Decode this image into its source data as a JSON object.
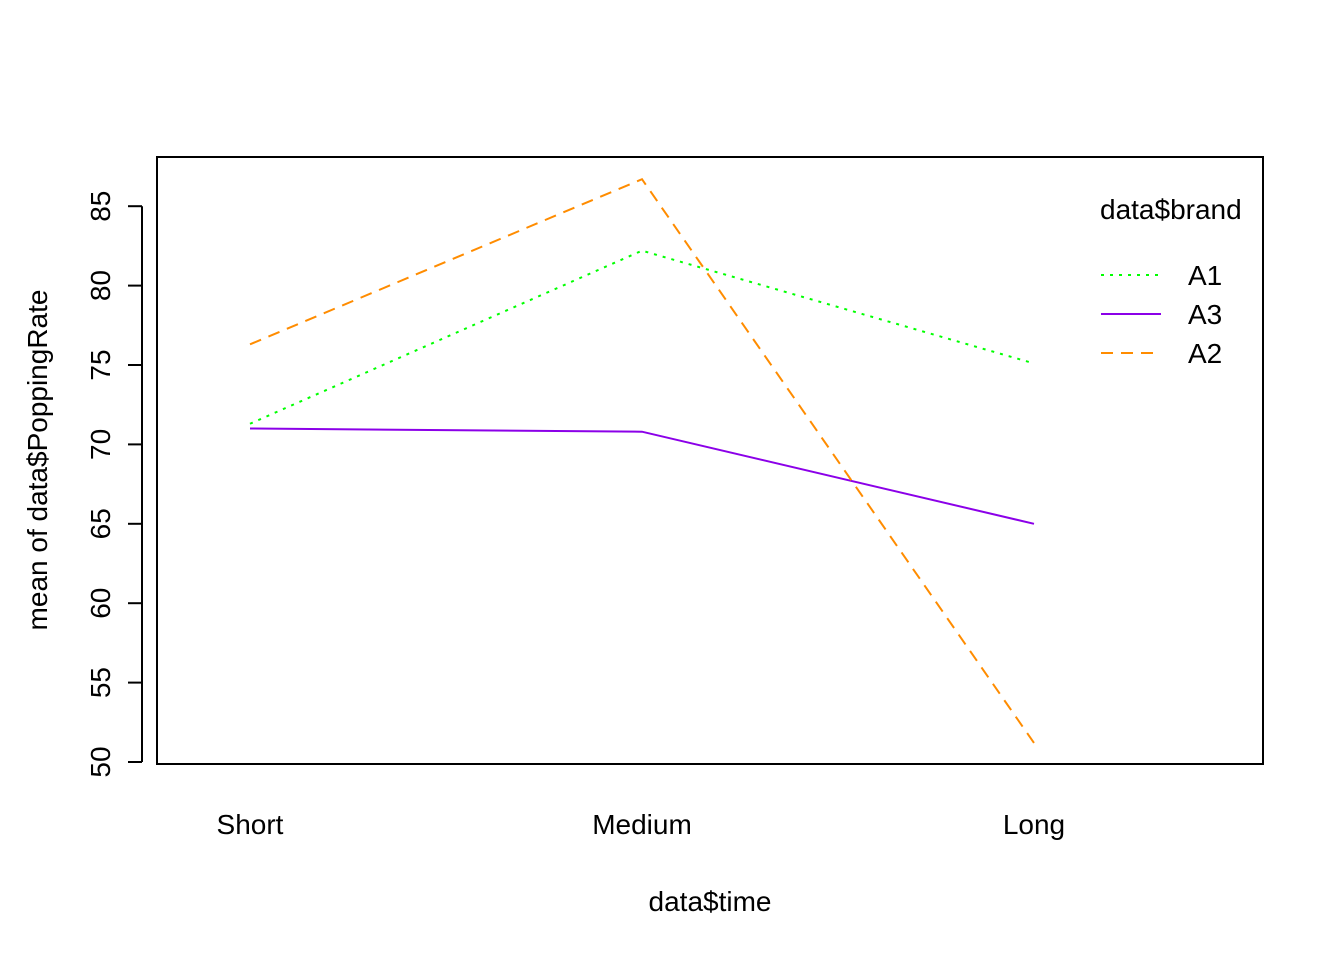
{
  "chart_data": {
    "type": "line",
    "title": "",
    "xlabel": "data$time",
    "ylabel": "mean of  data$PoppingRate",
    "categories": [
      "Short",
      "Medium",
      "Long"
    ],
    "ylim": [
      50,
      88
    ],
    "yticks": [
      50,
      55,
      60,
      65,
      70,
      75,
      80,
      85
    ],
    "grid": false,
    "legend_title": "data$brand",
    "legend_position": "top-right",
    "series": [
      {
        "name": "A1",
        "values": [
          71.3,
          82.2,
          75.1
        ],
        "color": "#00ff00",
        "style": "dotted"
      },
      {
        "name": "A3",
        "values": [
          71.0,
          70.8,
          65.0
        ],
        "color": "#8b00e8",
        "style": "solid"
      },
      {
        "name": "A2",
        "values": [
          76.3,
          86.7,
          51.2
        ],
        "color": "#ff8c00",
        "style": "dashed"
      }
    ]
  }
}
